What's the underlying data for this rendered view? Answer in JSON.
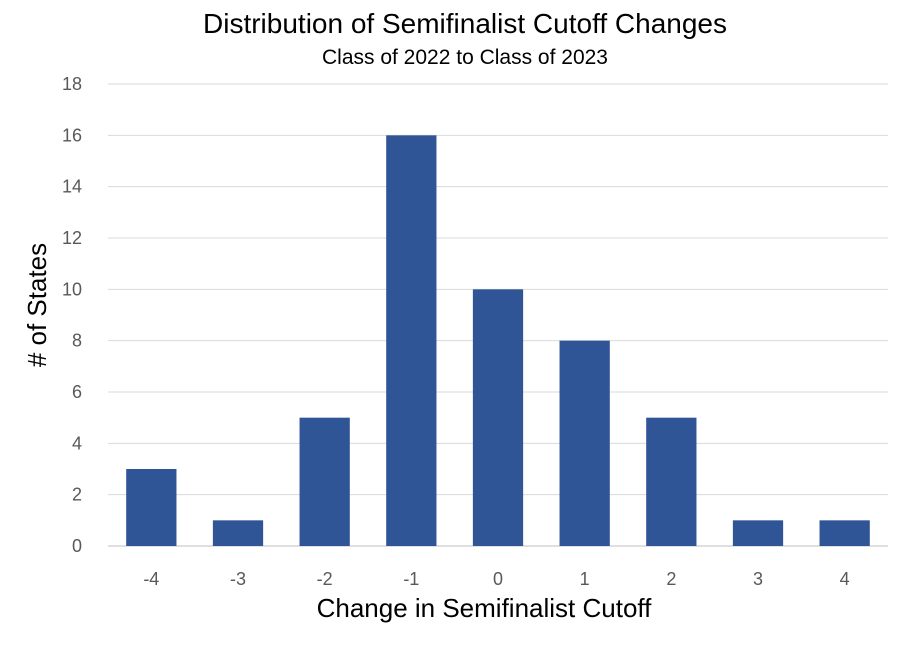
{
  "chart_data": {
    "type": "bar",
    "title": "Distribution of Semifinalist Cutoff Changes",
    "subtitle": "Class of 2022 to Class of 2023",
    "xlabel": "Change in Semifinalist Cutoff",
    "ylabel": "# of States",
    "categories": [
      "-4",
      "-3",
      "-2",
      "-1",
      "0",
      "1",
      "2",
      "3",
      "4"
    ],
    "values": [
      3,
      1,
      5,
      16,
      10,
      8,
      5,
      1,
      1
    ],
    "ylim": [
      0,
      18
    ],
    "yticks": [
      0,
      2,
      4,
      6,
      8,
      10,
      12,
      14,
      16,
      18
    ],
    "grid": true,
    "legend": "none",
    "colors": {
      "bar": "#2f5597",
      "grid": "#d9d9d9",
      "tick_text": "#595959"
    }
  }
}
